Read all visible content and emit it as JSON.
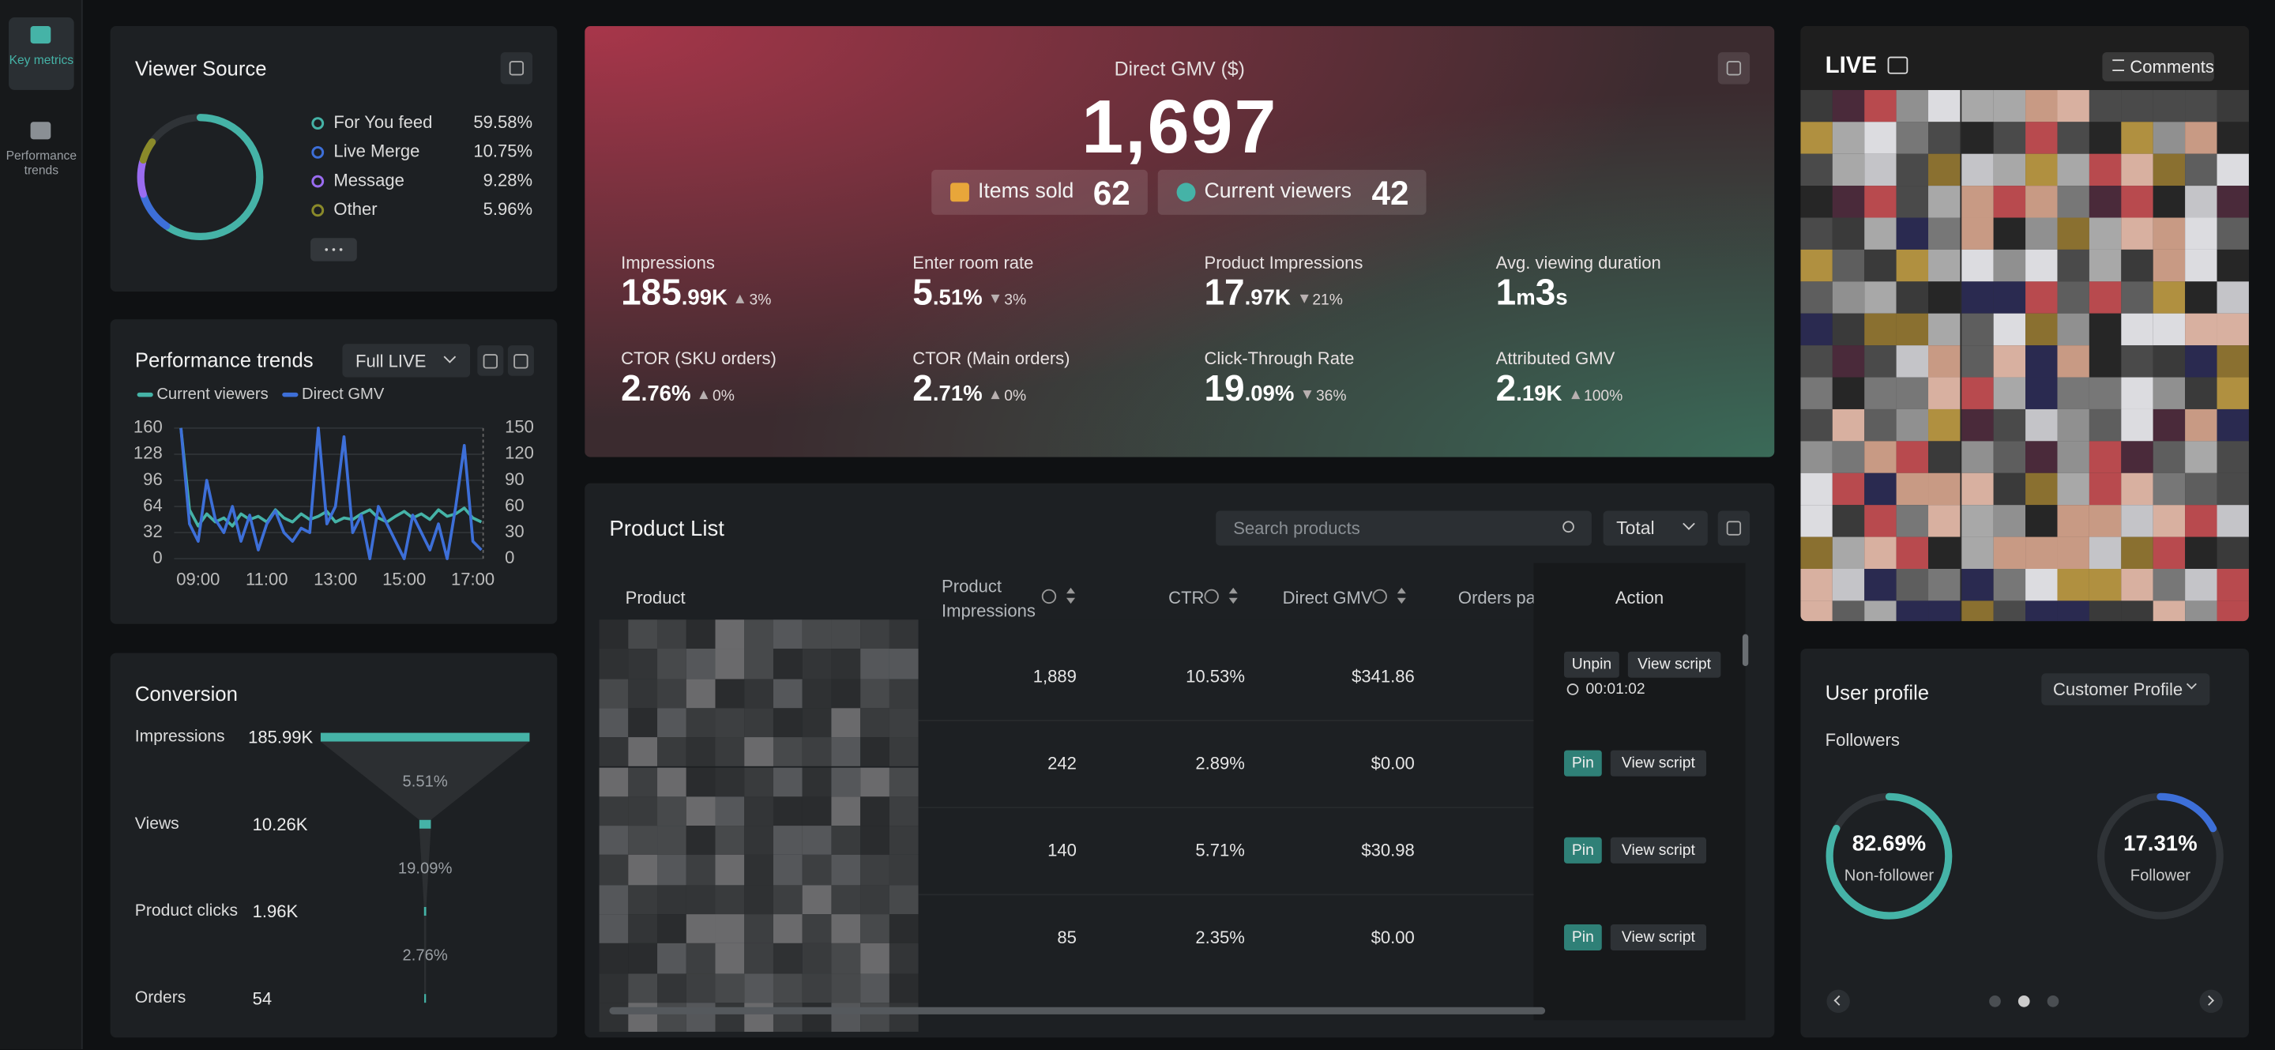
{
  "sidebar": {
    "items": [
      {
        "label": "Key metrics"
      },
      {
        "label": "Performance trends"
      }
    ]
  },
  "viewer_source": {
    "title": "Viewer Source",
    "chart": {
      "type": "donut",
      "total": 100,
      "items": [
        {
          "name": "For You feed",
          "color": "#45b3a7",
          "value": 59.58,
          "value_label": "59.58%"
        },
        {
          "name": "Live Merge",
          "color": "#3d6fd8",
          "value": 10.75,
          "value_label": "10.75%"
        },
        {
          "name": "Message",
          "color": "#9a6cf0",
          "value": 9.28,
          "value_label": "9.28%"
        },
        {
          "name": "Other",
          "color": "#8a8a2a",
          "value": 5.96,
          "value_label": "5.96%"
        }
      ]
    }
  },
  "performance": {
    "title": "Performance trends",
    "filter": "Full LIVE",
    "chart": {
      "type": "line",
      "x": [
        8.5,
        8.75,
        9,
        9.25,
        9.5,
        9.75,
        10,
        10.25,
        10.5,
        10.75,
        11,
        11.25,
        11.5,
        11.75,
        12,
        12.25,
        12.5,
        12.75,
        13,
        13.25,
        13.5,
        13.75,
        14,
        14.25,
        14.5,
        14.75,
        15,
        15.25,
        15.5,
        15.75,
        16,
        16.25,
        16.5,
        16.75,
        17,
        17.25
      ],
      "xlim": [
        8.3,
        17.3
      ],
      "xticks": [
        {
          "value": 9,
          "label": "09:00"
        },
        {
          "value": 11,
          "label": "11:00"
        },
        {
          "value": 13,
          "label": "13:00"
        },
        {
          "value": 15,
          "label": "15:00"
        },
        {
          "value": 17,
          "label": "17:00"
        }
      ],
      "ylim": [
        0,
        160
      ],
      "yticks": [
        0,
        32,
        64,
        96,
        128,
        160
      ],
      "y2lim": [
        0,
        150
      ],
      "y2ticks": [
        0,
        30,
        60,
        90,
        120,
        150
      ],
      "grid": true,
      "series": [
        {
          "name": "Current viewers",
          "color": "#45b3a7",
          "values": [
            160,
            60,
            40,
            55,
            45,
            50,
            40,
            55,
            48,
            52,
            45,
            60,
            50,
            45,
            55,
            48,
            52,
            58,
            45,
            50,
            48,
            55,
            60,
            50,
            45,
            52,
            58,
            50,
            55,
            48,
            60,
            52,
            55,
            62,
            50,
            45
          ]
        },
        {
          "name": "Direct GMV",
          "color": "#3d6fd8",
          "axis": "y2",
          "values": [
            150,
            40,
            20,
            90,
            45,
            30,
            60,
            20,
            50,
            10,
            40,
            55,
            30,
            20,
            35,
            30,
            150,
            40,
            60,
            140,
            30,
            50,
            0,
            60,
            40,
            20,
            0,
            50,
            30,
            10,
            40,
            0,
            60,
            130,
            20,
            10
          ]
        }
      ]
    }
  },
  "conversion": {
    "title": "Conversion",
    "chart": {
      "type": "funnel",
      "color": "#45b3a7",
      "categories": [
        "Impressions",
        "Views",
        "Product clicks",
        "Orders"
      ],
      "values": [
        185990,
        10260,
        1960,
        54
      ],
      "value_labels": [
        "185.99K",
        "10.26K",
        "1.96K",
        "54"
      ],
      "rates": [
        "5.51%",
        "19.09%",
        "2.76%"
      ]
    }
  },
  "gmv": {
    "title": "Direct GMV ($)",
    "value": "1,697",
    "badges": [
      {
        "label": "Items sold",
        "value": 62
      },
      {
        "label": "Current viewers",
        "value": 42
      }
    ],
    "metrics": [
      {
        "label": "Impressions",
        "parts": [
          "185",
          ".99K"
        ],
        "change": "3%",
        "trend": "up"
      },
      {
        "label": "Enter room rate",
        "parts": [
          "5",
          ".51%"
        ],
        "change": "3%",
        "trend": "down"
      },
      {
        "label": "Product Impressions",
        "parts": [
          "17",
          ".97K"
        ],
        "change": "21%",
        "trend": "down"
      },
      {
        "label": "Avg. viewing duration",
        "parts": [
          "1",
          "m",
          "3",
          "s"
        ]
      },
      {
        "label": "CTOR (SKU orders)",
        "parts": [
          "2",
          ".76%"
        ],
        "change": "0%",
        "trend": "up"
      },
      {
        "label": "CTOR (Main orders)",
        "parts": [
          "2",
          ".71%"
        ],
        "change": "0%",
        "trend": "up"
      },
      {
        "label": "Click-Through Rate",
        "parts": [
          "19",
          ".09%"
        ],
        "change": "36%",
        "trend": "down"
      },
      {
        "label": "Attributed GMV",
        "parts": [
          "2",
          ".19K"
        ],
        "change": "100%",
        "trend": "up"
      }
    ]
  },
  "products": {
    "title": "Product List",
    "search_placeholder": "Search products",
    "filter": "Total",
    "columns": [
      "Product",
      "Product Impressions",
      "CTR",
      "Direct GMV",
      "Orders pai",
      "Action"
    ],
    "rows": [
      {
        "impressions": "1,889",
        "ctr": "10.53%",
        "gmv": "$341.86",
        "actions": [
          "Unpin",
          "View script"
        ],
        "timer": "00:01:02"
      },
      {
        "impressions": "242",
        "ctr": "2.89%",
        "gmv": "$0.00",
        "actions": [
          "Pin",
          "View script"
        ]
      },
      {
        "impressions": "140",
        "ctr": "5.71%",
        "gmv": "$30.98",
        "actions": [
          "Pin",
          "View script"
        ]
      },
      {
        "impressions": "85",
        "ctr": "2.35%",
        "gmv": "$0.00",
        "actions": [
          "Pin",
          "View script"
        ]
      }
    ]
  },
  "live": {
    "label": "LIVE",
    "comments": "Comments"
  },
  "user_profile": {
    "title": "User profile",
    "filter": "Customer Profile",
    "subtitle": "Followers",
    "chart": {
      "type": "ring",
      "total": 100,
      "items": [
        {
          "name": "Non-follower",
          "value": 82.69,
          "value_label": "82.69%",
          "color": "#45b3a7"
        },
        {
          "name": "Follower",
          "value": 17.31,
          "value_label": "17.31%",
          "color": "#3d6fd8"
        }
      ]
    }
  }
}
